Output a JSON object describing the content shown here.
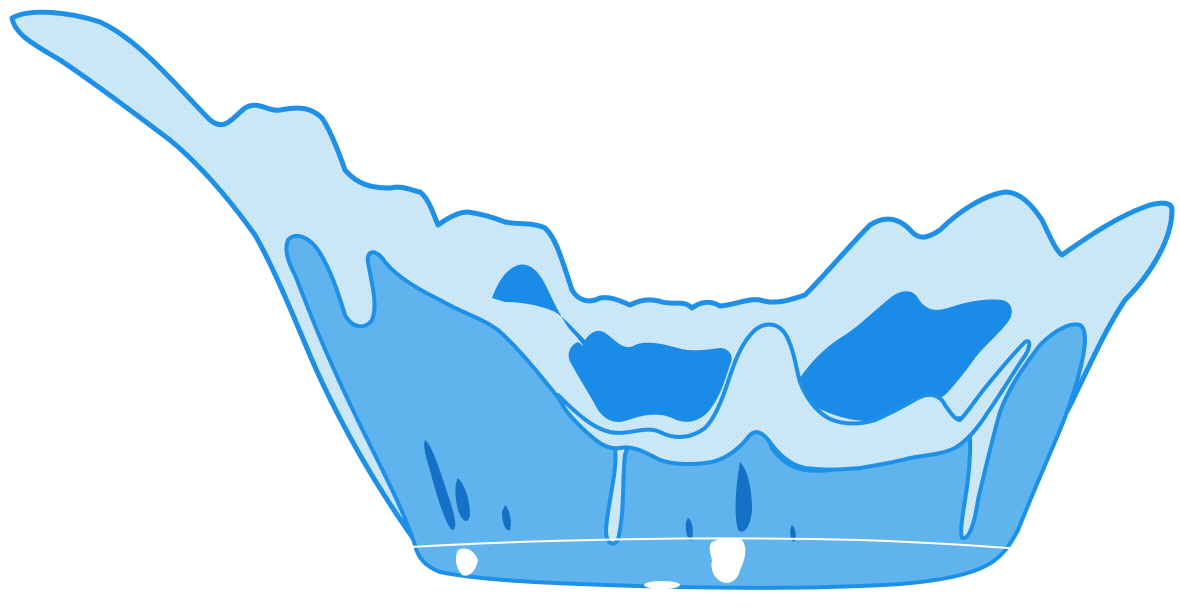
{
  "scene": {
    "subject": "water-splash",
    "palette": {
      "background": "#ffffff",
      "outline": "#1e90e8",
      "crest_light": "#cfe8f5",
      "body_mid": "#5fb4ee",
      "inner_deep": "#1a8be6",
      "streak_dark": "#1570c8",
      "highlight": "#ffffff"
    }
  }
}
